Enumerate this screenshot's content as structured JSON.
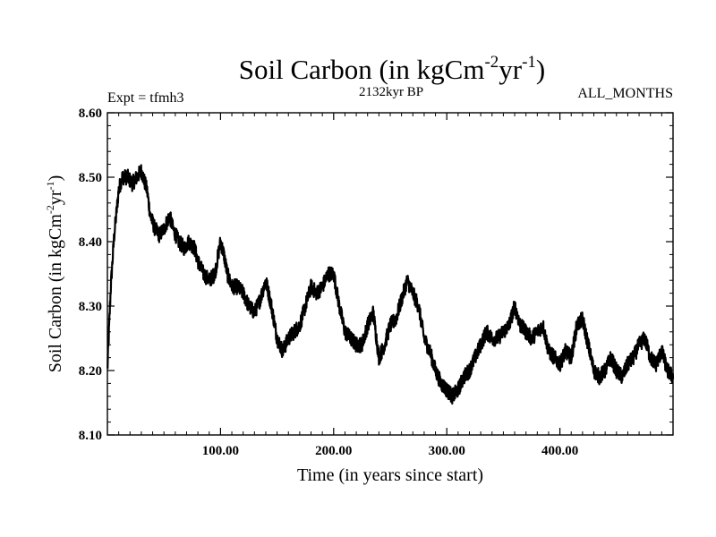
{
  "chart_data": {
    "type": "line",
    "title_main": "Soil Carbon (in kgCm",
    "title_exp1": "-2",
    "title_mid": "yr",
    "title_exp2": "-1",
    "title_close": ")",
    "subtitle_left": "Expt = tfmh3",
    "subtitle_center": "2132kyr BP",
    "subtitle_right": "ALL_MONTHS",
    "xlabel": "Time (in years since start)",
    "ylabel_main": "Soil Carbon (in kgCm",
    "ylabel_exp1": "-2",
    "ylabel_mid": "yr",
    "ylabel_exp2": "-1",
    "ylabel_close": ")",
    "xlim": [
      0,
      500
    ],
    "ylim": [
      8.1,
      8.6
    ],
    "xticks": [
      100,
      200,
      300,
      400
    ],
    "xtick_labels": [
      "100.00",
      "200.00",
      "300.00",
      "400.00"
    ],
    "yticks": [
      8.1,
      8.2,
      8.3,
      8.4,
      8.5,
      8.6
    ],
    "ytick_labels": [
      "8.10",
      "8.20",
      "8.30",
      "8.40",
      "8.50",
      "8.60"
    ],
    "series": [
      {
        "name": "Soil Carbon",
        "color": "#000000",
        "noise_amplitude": 0.012,
        "x": [
          0,
          3,
          6,
          10,
          13,
          18,
          22,
          26,
          30,
          35,
          38,
          42,
          46,
          50,
          55,
          58,
          63,
          68,
          72,
          77,
          80,
          85,
          90,
          95,
          100,
          103,
          106,
          110,
          115,
          120,
          125,
          130,
          135,
          140,
          145,
          150,
          155,
          160,
          165,
          170,
          175,
          180,
          185,
          190,
          195,
          200,
          205,
          210,
          215,
          220,
          225,
          230,
          235,
          240,
          245,
          250,
          255,
          260,
          265,
          270,
          275,
          280,
          285,
          290,
          295,
          300,
          305,
          310,
          315,
          320,
          325,
          330,
          335,
          340,
          345,
          350,
          355,
          360,
          365,
          370,
          375,
          380,
          385,
          390,
          395,
          400,
          405,
          410,
          415,
          420,
          425,
          430,
          435,
          440,
          445,
          450,
          455,
          460,
          465,
          470,
          475,
          480,
          485,
          490,
          495,
          500
        ],
        "y": [
          8.2,
          8.33,
          8.41,
          8.48,
          8.5,
          8.5,
          8.49,
          8.5,
          8.51,
          8.48,
          8.44,
          8.42,
          8.41,
          8.42,
          8.44,
          8.42,
          8.4,
          8.39,
          8.4,
          8.39,
          8.37,
          8.35,
          8.34,
          8.35,
          8.4,
          8.38,
          8.35,
          8.33,
          8.33,
          8.32,
          8.3,
          8.29,
          8.31,
          8.34,
          8.3,
          8.25,
          8.23,
          8.25,
          8.26,
          8.27,
          8.3,
          8.33,
          8.32,
          8.33,
          8.35,
          8.35,
          8.3,
          8.26,
          8.25,
          8.24,
          8.24,
          8.27,
          8.29,
          8.22,
          8.24,
          8.27,
          8.28,
          8.31,
          8.34,
          8.32,
          8.3,
          8.25,
          8.23,
          8.2,
          8.18,
          8.17,
          8.16,
          8.17,
          8.19,
          8.2,
          8.22,
          8.24,
          8.26,
          8.25,
          8.25,
          8.26,
          8.27,
          8.3,
          8.27,
          8.26,
          8.25,
          8.26,
          8.27,
          8.23,
          8.22,
          8.21,
          8.23,
          8.22,
          8.27,
          8.28,
          8.24,
          8.2,
          8.19,
          8.2,
          8.22,
          8.2,
          8.19,
          8.21,
          8.22,
          8.24,
          8.25,
          8.22,
          8.21,
          8.23,
          8.2,
          8.19
        ]
      }
    ]
  }
}
